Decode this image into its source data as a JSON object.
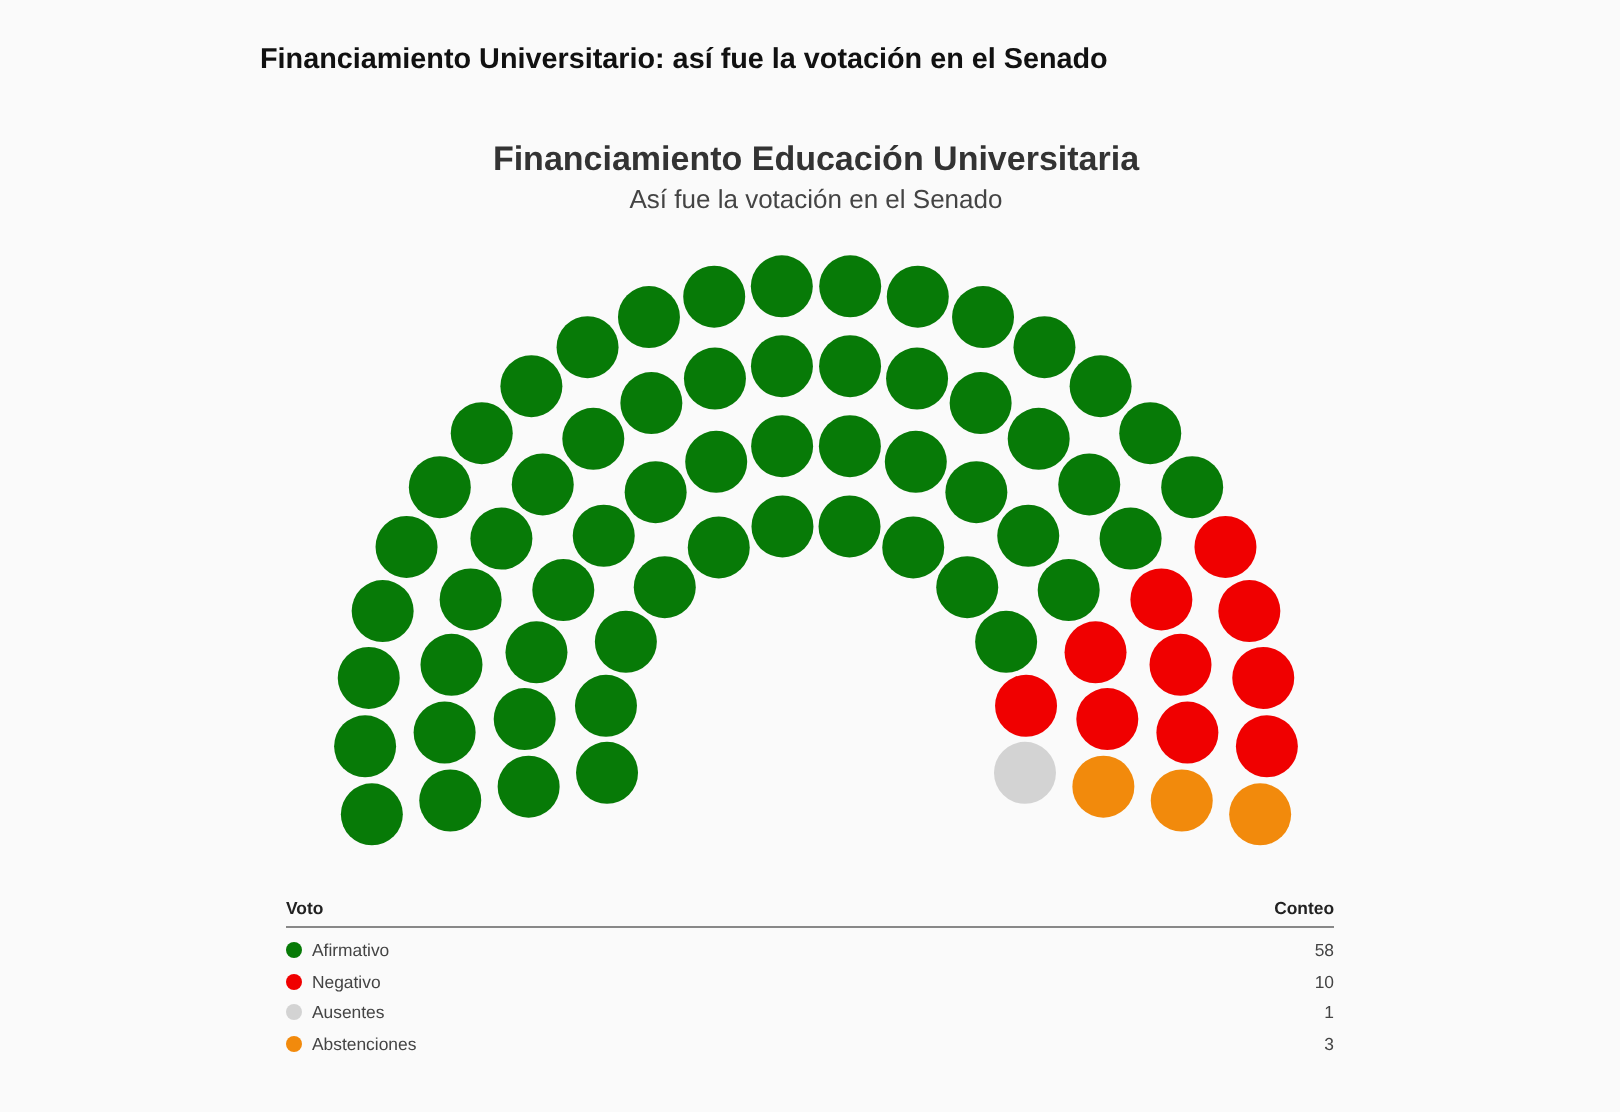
{
  "chart_data": {
    "type": "other",
    "title": "Financiamiento Educación Universitaria",
    "subtitle": "Así fue la votación en el Senado",
    "annotations": [
      "Financiamiento Universitario: así fue la votación en el Senado",
      "Conteo"
    ],
    "legend_title": "Voto",
    "data_labels": true,
    "categories": [
      "Afirmativo",
      "Negativo",
      "Ausentes",
      "Abstenciones"
    ],
    "values": [
      58,
      10,
      1,
      3
    ],
    "colors": [
      "#077a07",
      "#f00000",
      "#d3d3d3",
      "#f28a0c"
    ]
  }
}
